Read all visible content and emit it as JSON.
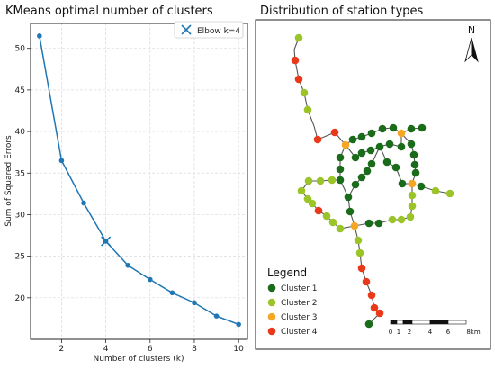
{
  "chart_data": [
    {
      "type": "line",
      "title": "KMeans optimal number of clusters",
      "xlabel": "Number of clusters (k)",
      "ylabel": "Sum of Squared Errors",
      "x": [
        1,
        2,
        3,
        4,
        5,
        6,
        7,
        8,
        9,
        10
      ],
      "series": [
        {
          "values": [
            51.5,
            36.5,
            31.4,
            26.8,
            23.9,
            22.2,
            20.6,
            19.4,
            17.8,
            16.8
          ]
        }
      ],
      "xlim": [
        0.6,
        10.4
      ],
      "ylim": [
        15,
        53
      ],
      "xticks": [
        2,
        4,
        6,
        8,
        10
      ],
      "yticks": [
        20,
        25,
        30,
        35,
        40,
        45,
        50
      ],
      "grid": true,
      "legend": {
        "placement": "top-right",
        "label": "Elbow k=4"
      },
      "elbow": {
        "x": 4,
        "y": 26.8
      },
      "colors": {
        "line": "#1f77b4",
        "grid": "#d9d9d9"
      }
    },
    {
      "type": "scatter",
      "title": "Distribution of station types",
      "north_label": "N",
      "legend": {
        "title": "Legend",
        "placement": "bottom-left",
        "items": [
          {
            "label": "Cluster 1",
            "color": "#1a6b1a"
          },
          {
            "label": "Cluster 2",
            "color": "#9bc428"
          },
          {
            "label": "Cluster 3",
            "color": "#f5a623"
          },
          {
            "label": "Cluster 4",
            "color": "#e8391a"
          }
        ]
      },
      "scale_bar": {
        "labels": [
          "0",
          "1",
          "2",
          "4",
          "6",
          "8km"
        ]
      },
      "stations": [
        [
          332,
          42,
          2
        ],
        [
          328,
          67,
          4
        ],
        [
          332,
          88,
          4
        ],
        [
          338,
          103,
          2
        ],
        [
          342,
          122,
          2
        ],
        [
          353,
          155,
          4
        ],
        [
          372,
          147,
          4
        ],
        [
          384,
          161,
          3
        ],
        [
          392,
          155,
          1
        ],
        [
          402,
          152,
          1
        ],
        [
          413,
          148,
          1
        ],
        [
          425,
          143,
          1
        ],
        [
          437,
          142,
          1
        ],
        [
          446,
          148,
          3
        ],
        [
          457,
          143,
          1
        ],
        [
          469,
          142,
          1
        ],
        [
          378,
          175,
          1
        ],
        [
          378,
          188,
          1
        ],
        [
          378,
          200,
          1
        ],
        [
          395,
          175,
          1
        ],
        [
          402,
          170,
          1
        ],
        [
          412,
          167,
          1
        ],
        [
          422,
          163,
          1
        ],
        [
          433,
          160,
          1
        ],
        [
          446,
          163,
          1
        ],
        [
          457,
          160,
          1
        ],
        [
          413,
          182,
          1
        ],
        [
          408,
          190,
          1
        ],
        [
          402,
          197,
          1
        ],
        [
          395,
          205,
          1
        ],
        [
          430,
          180,
          1
        ],
        [
          440,
          186,
          1
        ],
        [
          460,
          172,
          1
        ],
        [
          461,
          183,
          1
        ],
        [
          462,
          192,
          1
        ],
        [
          447,
          204,
          1
        ],
        [
          458,
          204,
          3
        ],
        [
          468,
          207,
          1
        ],
        [
          484,
          212,
          2
        ],
        [
          500,
          215,
          2
        ],
        [
          343,
          201,
          2
        ],
        [
          356,
          201,
          2
        ],
        [
          369,
          200,
          2
        ],
        [
          387,
          219,
          1
        ],
        [
          389,
          235,
          1
        ],
        [
          335,
          212,
          2
        ],
        [
          342,
          221,
          2
        ],
        [
          347,
          226,
          2
        ],
        [
          354,
          234,
          4
        ],
        [
          363,
          240,
          2
        ],
        [
          370,
          247,
          2
        ],
        [
          378,
          254,
          2
        ],
        [
          394,
          251,
          3
        ],
        [
          410,
          248,
          1
        ],
        [
          421,
          248,
          1
        ],
        [
          436,
          244,
          2
        ],
        [
          446,
          244,
          2
        ],
        [
          456,
          241,
          2
        ],
        [
          458,
          229,
          2
        ],
        [
          458,
          217,
          2
        ],
        [
          398,
          267,
          2
        ],
        [
          400,
          281,
          2
        ],
        [
          402,
          298,
          4
        ],
        [
          407,
          313,
          4
        ],
        [
          413,
          328,
          4
        ],
        [
          416,
          342,
          4
        ],
        [
          422,
          348,
          4
        ],
        [
          410,
          360,
          1
        ]
      ],
      "lines": [
        [
          [
            332,
            42
          ],
          [
            327,
            55
          ],
          [
            328,
            67
          ],
          [
            332,
            88
          ],
          [
            338,
            103
          ],
          [
            342,
            122
          ],
          [
            349,
            140
          ],
          [
            353,
            155
          ],
          [
            365,
            150
          ],
          [
            372,
            147
          ],
          [
            384,
            161
          ],
          [
            392,
            155
          ],
          [
            402,
            152
          ],
          [
            413,
            148
          ],
          [
            425,
            143
          ],
          [
            437,
            142
          ],
          [
            446,
            148
          ],
          [
            457,
            143
          ],
          [
            469,
            142
          ]
        ],
        [
          [
            384,
            161
          ],
          [
            378,
            175
          ],
          [
            378,
            188
          ],
          [
            378,
            200
          ],
          [
            387,
            219
          ],
          [
            389,
            235
          ],
          [
            394,
            251
          ],
          [
            398,
            267
          ],
          [
            400,
            281
          ],
          [
            402,
            298
          ],
          [
            407,
            313
          ],
          [
            413,
            328
          ],
          [
            416,
            342
          ],
          [
            422,
            348
          ],
          [
            410,
            360
          ]
        ],
        [
          [
            446,
            148
          ],
          [
            457,
            160
          ],
          [
            460,
            172
          ],
          [
            461,
            183
          ],
          [
            462,
            192
          ],
          [
            458,
            204
          ],
          [
            468,
            207
          ],
          [
            484,
            212
          ],
          [
            500,
            215
          ]
        ],
        [
          [
            384,
            161
          ],
          [
            395,
            175
          ],
          [
            402,
            170
          ],
          [
            412,
            167
          ],
          [
            422,
            163
          ],
          [
            433,
            160
          ],
          [
            446,
            163
          ],
          [
            446,
            148
          ]
        ],
        [
          [
            422,
            163
          ],
          [
            413,
            182
          ],
          [
            408,
            190
          ],
          [
            402,
            197
          ],
          [
            395,
            205
          ],
          [
            387,
            219
          ]
        ],
        [
          [
            422,
            163
          ],
          [
            430,
            180
          ],
          [
            440,
            186
          ],
          [
            447,
            204
          ],
          [
            458,
            204
          ]
        ],
        [
          [
            378,
            200
          ],
          [
            369,
            200
          ],
          [
            356,
            201
          ],
          [
            343,
            201
          ],
          [
            335,
            212
          ],
          [
            342,
            221
          ],
          [
            347,
            226
          ],
          [
            354,
            234
          ],
          [
            363,
            240
          ],
          [
            370,
            247
          ],
          [
            378,
            254
          ],
          [
            394,
            251
          ],
          [
            410,
            248
          ],
          [
            421,
            248
          ],
          [
            436,
            244
          ],
          [
            446,
            244
          ],
          [
            456,
            241
          ],
          [
            458,
            229
          ],
          [
            458,
            217
          ],
          [
            458,
            204
          ]
        ]
      ]
    }
  ]
}
